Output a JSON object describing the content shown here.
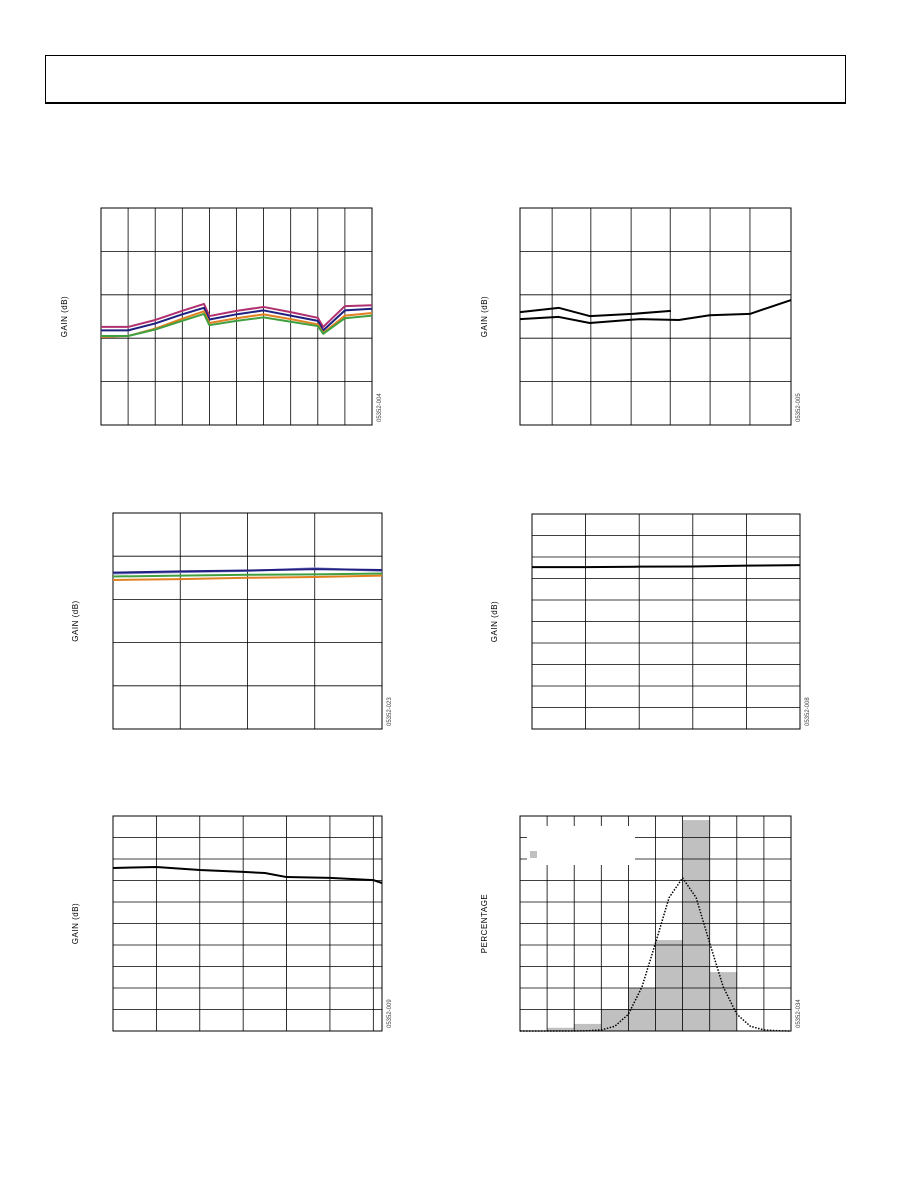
{
  "chart_data": [
    {
      "type": "line",
      "ylabel": "GAIN (dB)",
      "code": "05352-004",
      "xlim": [
        0,
        10
      ],
      "xticks": [
        0,
        1,
        2,
        3,
        4,
        5,
        6,
        7,
        8,
        9,
        10
      ],
      "ylim": [
        0,
        5
      ],
      "yticks": [
        0,
        1,
        2,
        3,
        4,
        5
      ],
      "grid": true,
      "series": [
        {
          "color": "#b03070",
          "x": [
            0,
            1,
            2,
            3,
            3.8,
            4,
            5,
            6,
            7,
            8,
            8.2,
            9,
            10
          ],
          "values": [
            2.26,
            2.26,
            2.42,
            2.63,
            2.79,
            2.51,
            2.63,
            2.72,
            2.6,
            2.47,
            2.26,
            2.74,
            2.76
          ]
        },
        {
          "color": "#202080",
          "x": [
            0,
            1,
            2,
            3,
            3.8,
            4,
            5,
            6,
            7,
            8,
            8.2,
            9,
            10
          ],
          "values": [
            2.18,
            2.18,
            2.34,
            2.55,
            2.7,
            2.43,
            2.55,
            2.64,
            2.52,
            2.4,
            2.18,
            2.64,
            2.68
          ]
        },
        {
          "color": "#e08020",
          "x": [
            0,
            1,
            2,
            3,
            3.8,
            4,
            5,
            6,
            7,
            8,
            8.2,
            9,
            10
          ],
          "values": [
            2.03,
            2.05,
            2.22,
            2.45,
            2.62,
            2.35,
            2.46,
            2.55,
            2.44,
            2.32,
            2.12,
            2.52,
            2.58
          ]
        },
        {
          "color": "#40a040",
          "x": [
            0,
            1,
            2,
            3,
            3.8,
            4,
            5,
            6,
            7,
            8,
            8.2,
            9,
            10
          ],
          "values": [
            2.05,
            2.05,
            2.2,
            2.4,
            2.56,
            2.3,
            2.4,
            2.48,
            2.38,
            2.28,
            2.1,
            2.46,
            2.52
          ]
        }
      ]
    },
    {
      "type": "line",
      "ylabel": "GAIN (dB)",
      "code": "05352-005",
      "xlim": [
        0,
        7
      ],
      "xticks": [
        0,
        0.83,
        1.83,
        2.87,
        3.88,
        4.91,
        5.94,
        7
      ],
      "ylim": [
        0,
        5
      ],
      "yticks": [
        0,
        1,
        2,
        3,
        4,
        5
      ],
      "grid": true,
      "series": [
        {
          "color": "#000000",
          "x": [
            0,
            1,
            1.8,
            2.9,
            3.9
          ],
          "values": [
            2.6,
            2.7,
            2.51,
            2.56,
            2.63
          ]
        },
        {
          "color": "#000000",
          "x": [
            0,
            1,
            1.8,
            3.1,
            4.1,
            4.9,
            5.94,
            7
          ],
          "values": [
            2.44,
            2.49,
            2.35,
            2.44,
            2.42,
            2.53,
            2.56,
            2.88
          ]
        }
      ]
    },
    {
      "type": "line",
      "ylabel": "GAIN (dB)",
      "code": "05352-023",
      "xlim": [
        0,
        4
      ],
      "xticks": [
        0,
        1,
        2,
        3,
        4
      ],
      "ylim": [
        0,
        5
      ],
      "yticks": [
        0,
        1,
        2,
        3,
        4,
        5
      ],
      "grid": true,
      "series": [
        {
          "color": "#9090d0",
          "x": [
            0,
            1,
            2,
            3,
            4
          ],
          "values": [
            3.6,
            3.63,
            3.66,
            3.72,
            3.66
          ]
        },
        {
          "color": "#202080",
          "x": [
            0,
            1,
            2,
            3,
            4
          ],
          "values": [
            3.62,
            3.65,
            3.67,
            3.7,
            3.68
          ]
        },
        {
          "color": "#40a040",
          "x": [
            0,
            1,
            2,
            3,
            4
          ],
          "values": [
            3.53,
            3.55,
            3.57,
            3.58,
            3.6
          ]
        },
        {
          "color": "#e08020",
          "x": [
            0,
            1,
            2,
            3,
            4
          ],
          "values": [
            3.45,
            3.47,
            3.5,
            3.52,
            3.55
          ]
        }
      ]
    },
    {
      "type": "line",
      "ylabel": "GAIN (dB)",
      "code": "05352-008",
      "xlim": [
        0,
        5
      ],
      "xticks": [
        0,
        1,
        2,
        3,
        4,
        5
      ],
      "ylim": [
        0,
        10
      ],
      "yticks": [
        0,
        1,
        2,
        3,
        4,
        5,
        6,
        7,
        8,
        9,
        10
      ],
      "grid": true,
      "series": [
        {
          "color": "#000000",
          "x": [
            0,
            1,
            2,
            3,
            4,
            5
          ],
          "values": [
            7.53,
            7.53,
            7.55,
            7.56,
            7.6,
            7.62
          ]
        }
      ]
    },
    {
      "type": "line",
      "ylabel": "GAIN (dB)",
      "code": "05352-009",
      "xlim": [
        0,
        6.2
      ],
      "xticks": [
        0,
        1,
        2,
        3,
        4,
        5,
        6
      ],
      "ylim": [
        0,
        10
      ],
      "yticks": [
        0,
        1,
        2,
        3,
        4,
        5,
        6,
        7,
        8,
        9,
        10
      ],
      "grid": true,
      "series": [
        {
          "color": "#000000",
          "x": [
            0,
            1,
            2,
            3,
            3.5,
            4,
            5,
            6,
            6.2
          ],
          "values": [
            7.58,
            7.63,
            7.49,
            7.4,
            7.35,
            7.16,
            7.12,
            7.02,
            6.88
          ]
        }
      ]
    },
    {
      "type": "histogram",
      "ylabel": "PERCENTAGE",
      "code": "05352-034",
      "xlim": [
        0,
        10
      ],
      "xticks": [
        0,
        1,
        2,
        3,
        4,
        5,
        6,
        7,
        8,
        9,
        10
      ],
      "ylim": [
        0,
        10
      ],
      "yticks": [
        0,
        1,
        2,
        3,
        4,
        5,
        6,
        7,
        8,
        9,
        10
      ],
      "grid": true,
      "bins": [
        1,
        2,
        3,
        4,
        5,
        6,
        7,
        8
      ],
      "values": [
        0.15,
        0.33,
        1.0,
        2.0,
        4.23,
        9.81,
        2.74
      ],
      "color": "#c0c0c0",
      "curve": {
        "color": "#000000",
        "x": [
          0,
          2,
          2.5,
          3,
          3.5,
          4,
          4.5,
          5,
          5.5,
          6,
          6.5,
          7,
          7.5,
          8,
          8.5,
          9,
          9.5,
          10
        ],
        "values": [
          0,
          0,
          0.01,
          0.05,
          0.22,
          0.78,
          2.05,
          4.09,
          6.2,
          7.12,
          6.2,
          4.09,
          2.05,
          0.78,
          0.22,
          0.05,
          0.01,
          0
        ]
      }
    }
  ]
}
